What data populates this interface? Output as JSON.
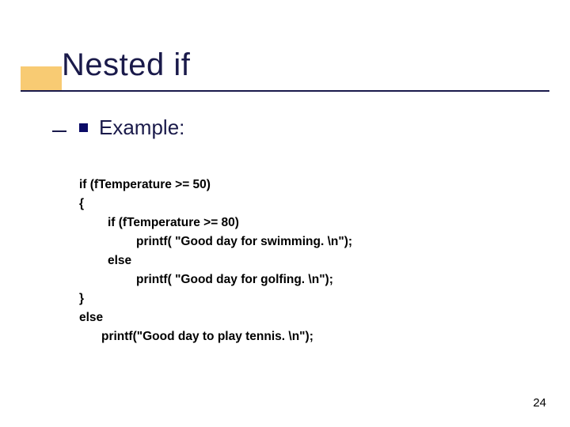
{
  "colors": {
    "accent": "#f2a100",
    "title_color": "#1a1a4a",
    "underline_color": "#19194b",
    "bullet_color": "#0b0b66",
    "text_color": "#000000",
    "background": "#ffffff"
  },
  "typography": {
    "title_fontsize": 40,
    "bullet_fontsize": 26,
    "code_fontsize": 15.5,
    "code_fontweight": "700",
    "font_family": "Verdana"
  },
  "title": "Nested if",
  "bullet": "Example:",
  "code": {
    "line1": "if (fTemperature >= 50)",
    "line2": "{",
    "line3": "if (fTemperature >= 80)",
    "line4": "printf( \"Good day for swimming. \\n\");",
    "line5": "else",
    "line6": "printf( \"Good day for golfing. \\n\");",
    "line7": "}",
    "line8": "else",
    "line9": "printf(\"Good day to play tennis. \\n\");"
  },
  "page_number": "24"
}
